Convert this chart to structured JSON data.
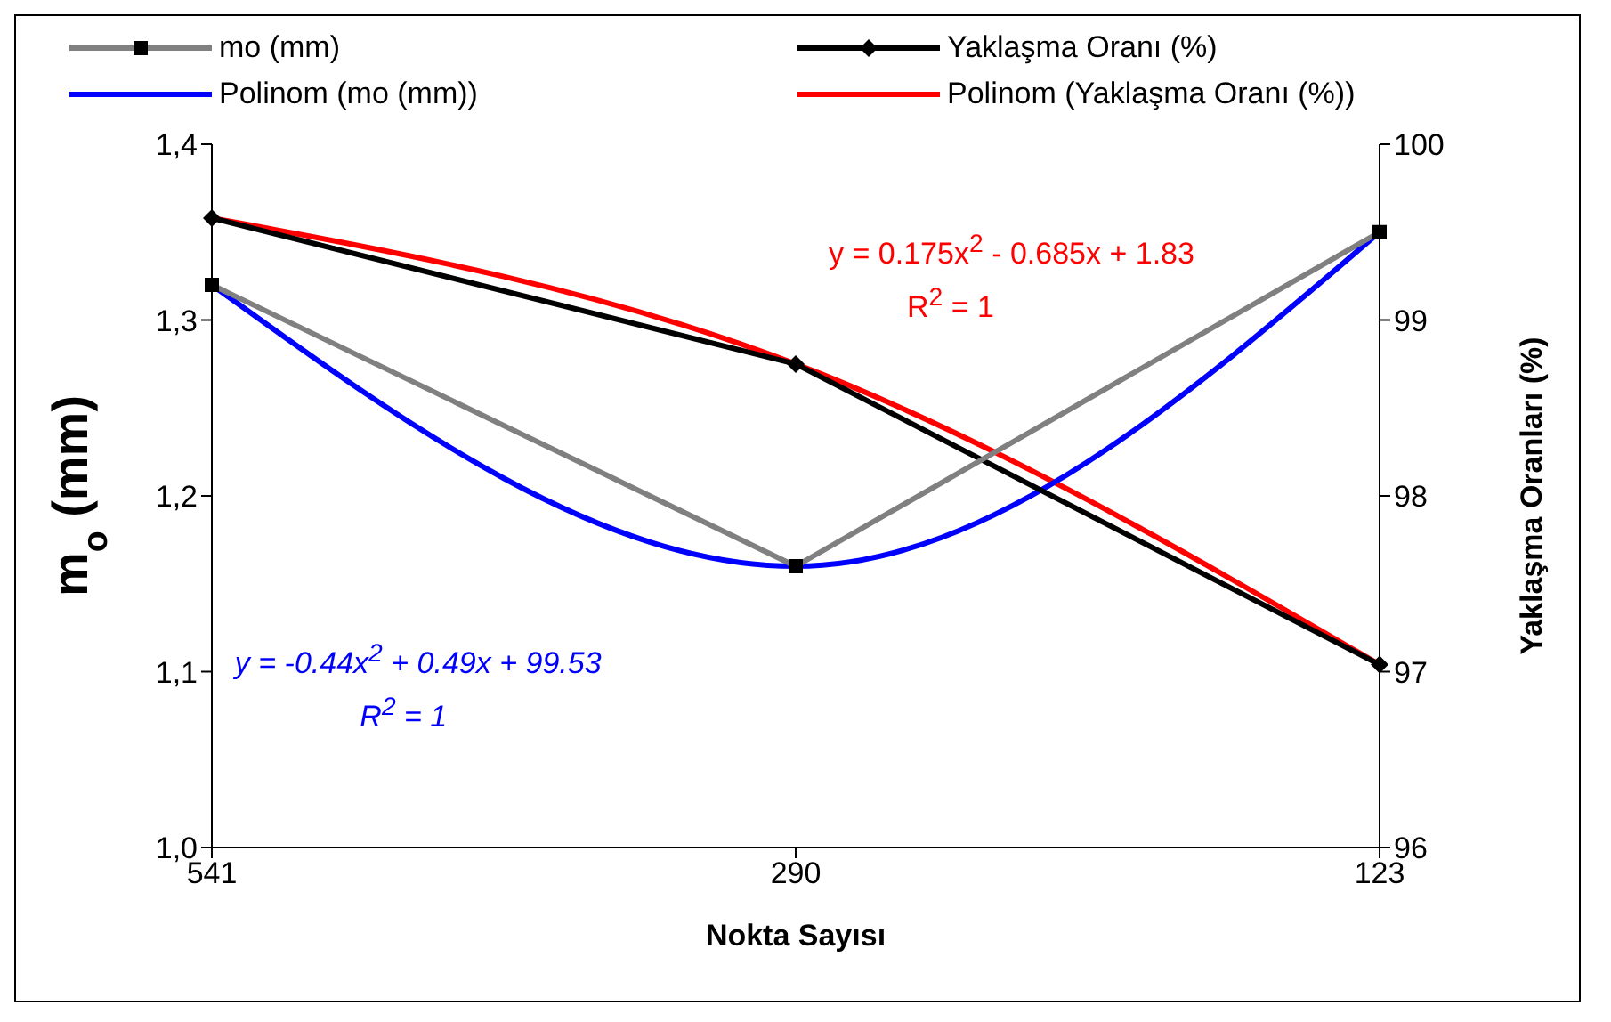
{
  "chart_data": {
    "type": "line",
    "xlabel": "Nokta Sayısı",
    "ylabel": "m$_{o}$ (mm)",
    "y2label": "Yaklaşma Oranları (%)",
    "categories": [
      "541",
      "290",
      "123"
    ],
    "ylim": [
      1.0,
      1.4
    ],
    "yticks": [
      {
        "value": 1.0,
        "label": "1,0"
      },
      {
        "value": 1.1,
        "label": "1,1"
      },
      {
        "value": 1.2,
        "label": "1,2"
      },
      {
        "value": 1.3,
        "label": "1,3"
      },
      {
        "value": 1.4,
        "label": "1,4"
      }
    ],
    "y2lim": [
      96,
      100
    ],
    "y2ticks": [
      96,
      97,
      98,
      99,
      100
    ],
    "grid": false,
    "legend": "top",
    "series": [
      {
        "name": "mo (mm)",
        "color": "#808080",
        "marker": "square",
        "values": [
          1.32,
          1.16,
          1.35
        ]
      },
      {
        "name": "Yaklaşma Oranı (%)",
        "color": "#000000",
        "marker": "diamond",
        "axis": "y2",
        "values": [
          99.58,
          98.75,
          97.04
        ]
      },
      {
        "name": "Polinom (mo (mm))",
        "color": "#0000ff",
        "marker": "none",
        "values": [
          1.32,
          1.16,
          1.35
        ]
      },
      {
        "name": "Polinom (Yaklaşma Oranı (%))",
        "color": "#ff0000",
        "marker": "none",
        "axis": "y2",
        "values": [
          99.58,
          98.75,
          97.04
        ]
      }
    ],
    "annotations": [
      "y = 0.175x$^{2}$ - 0.685x + 1.83",
      "R$^{2}$ = 1",
      "y = -0.44x$^{2}$ + 0.49x + 99.53",
      "R$^{2}$ = 1"
    ]
  }
}
